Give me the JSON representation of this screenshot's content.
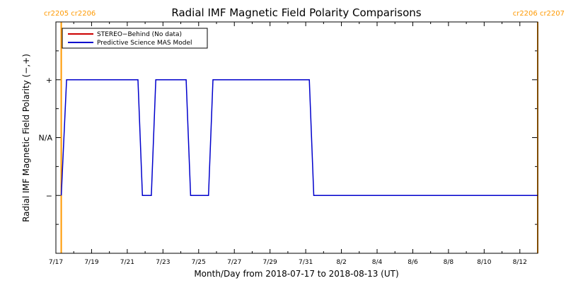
{
  "chart_data": {
    "type": "line",
    "title": "Radial IMF Magnetic Field Polarity Comparisons",
    "xlabel": "Month/Day from 2018-07-17 to 2018-08-13 (UT)",
    "ylabel": "Radial IMF Magnetic Field Polarity (−,+)",
    "x_range_days": [
      0,
      27
    ],
    "xlim": [
      "2018-07-17",
      "2018-08-13"
    ],
    "ylim": [
      -2,
      2
    ],
    "xticks": [
      {
        "day": 0,
        "label": "7/17"
      },
      {
        "day": 2,
        "label": "7/19"
      },
      {
        "day": 4,
        "label": "7/21"
      },
      {
        "day": 6,
        "label": "7/23"
      },
      {
        "day": 8,
        "label": "7/25"
      },
      {
        "day": 10,
        "label": "7/27"
      },
      {
        "day": 12,
        "label": "7/29"
      },
      {
        "day": 14,
        "label": "7/31"
      },
      {
        "day": 16,
        "label": "8/2"
      },
      {
        "day": 18,
        "label": "8/4"
      },
      {
        "day": 20,
        "label": "8/6"
      },
      {
        "day": 22,
        "label": "8/8"
      },
      {
        "day": 24,
        "label": "8/10"
      },
      {
        "day": 26,
        "label": "8/12"
      }
    ],
    "yticks": [
      {
        "value": 1,
        "label": "+"
      },
      {
        "value": 0,
        "label": "N/A"
      },
      {
        "value": -1,
        "label": "−"
      }
    ],
    "carrington_labels": [
      {
        "day": 0.3,
        "left": "cr2205",
        "right": "cr2206",
        "color": "#ff9900"
      },
      {
        "day": 27,
        "left": "cr2206",
        "right": "cr2207",
        "color": "#ff9900"
      }
    ],
    "grid": false,
    "legend_position": "top-left",
    "series": [
      {
        "name": "STEREO−Behind (No data)",
        "color": "#cc0000",
        "points": []
      },
      {
        "name": "Predictive Science MAS Model",
        "color": "#0000cc",
        "points": [
          [
            0.3,
            -1
          ],
          [
            0.6,
            1
          ],
          [
            4.6,
            1
          ],
          [
            4.85,
            -1
          ],
          [
            5.35,
            -1
          ],
          [
            5.6,
            1
          ],
          [
            7.3,
            1
          ],
          [
            7.55,
            -1
          ],
          [
            8.55,
            -1
          ],
          [
            8.8,
            1
          ],
          [
            14.2,
            1
          ],
          [
            14.45,
            -1
          ],
          [
            27,
            -1
          ]
        ]
      }
    ]
  }
}
